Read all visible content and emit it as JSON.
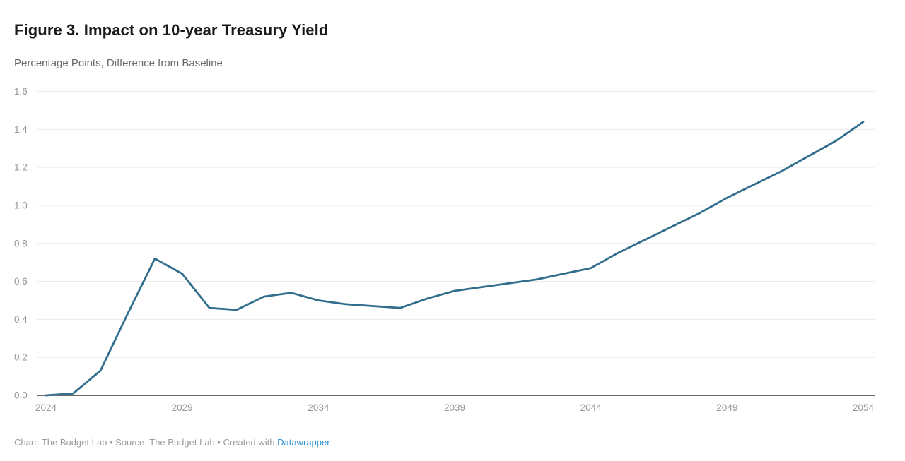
{
  "header": {
    "title": "Figure 3. Impact on 10-year Treasury Yield",
    "subtitle": "Percentage Points, Difference from Baseline"
  },
  "footer": {
    "text_before_link": "Chart: The Budget Lab • Source: The Budget Lab • Created with ",
    "link_label": "Datawrapper",
    "link_color": "#2f93d2"
  },
  "chart_data": {
    "type": "line",
    "title": "Figure 3. Impact on 10-year Treasury Yield",
    "subtitle": "Percentage Points, Difference from Baseline",
    "xlabel": "",
    "ylabel": "Percentage Points, Difference from Baseline",
    "x": [
      2024,
      2025,
      2026,
      2027,
      2028,
      2029,
      2030,
      2031,
      2032,
      2033,
      2034,
      2035,
      2036,
      2037,
      2038,
      2039,
      2040,
      2041,
      2042,
      2043,
      2044,
      2045,
      2046,
      2047,
      2048,
      2049,
      2050,
      2051,
      2052,
      2053,
      2054
    ],
    "series": [
      {
        "name": "Impact on 10-year Treasury Yield",
        "values": [
          0.0,
          0.01,
          0.13,
          0.43,
          0.72,
          0.64,
          0.46,
          0.45,
          0.52,
          0.54,
          0.5,
          0.48,
          0.47,
          0.46,
          0.51,
          0.55,
          0.57,
          0.59,
          0.61,
          0.64,
          0.67,
          0.75,
          0.82,
          0.89,
          0.96,
          1.04,
          1.11,
          1.18,
          1.26,
          1.34,
          1.44
        ]
      }
    ],
    "xlim": [
      2024,
      2054
    ],
    "ylim": [
      0,
      1.6
    ],
    "y_ticks": [
      0.0,
      0.2,
      0.4,
      0.6,
      0.8,
      1.0,
      1.2,
      1.4,
      1.6
    ],
    "x_ticks": [
      2024,
      2029,
      2034,
      2039,
      2044,
      2049,
      2054
    ],
    "grid": "horizontal",
    "legend": "none",
    "line_color": "#316d8c",
    "grid_color": "#e9e9e9",
    "axis_color": "#3a3a3a",
    "tick_label_color": "#969696"
  }
}
